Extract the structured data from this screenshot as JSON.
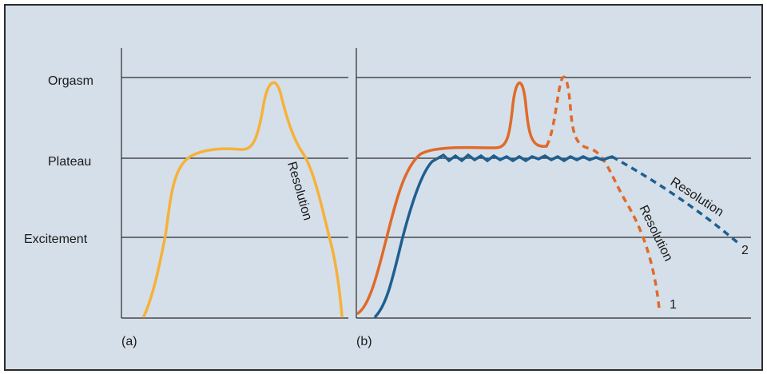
{
  "stage_labels": [
    "Orgasm",
    "Plateau",
    "Excitement"
  ],
  "panels": [
    {
      "label": "(a)"
    },
    {
      "label": "(b)"
    }
  ],
  "annotations": {
    "resolution_a": "Resolution",
    "resolution_b1": "Resolution",
    "resolution_b2": "Resolution",
    "curve_1": "1",
    "curve_2": "2"
  },
  "colors": {
    "background": "#d5dfe9",
    "grid": "#2b2b2b",
    "panel_a_curve": "#f6b13a",
    "panel_b_curve_1": "#e06a2a",
    "panel_b_curve_2": "#1f5f8f"
  }
}
